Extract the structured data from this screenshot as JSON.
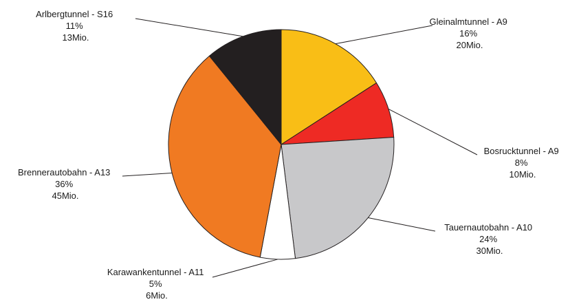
{
  "chart_data": {
    "type": "pie",
    "title": "",
    "unit": "Mio.",
    "start_angle_deg": 0,
    "direction": "clockwise",
    "slices": [
      {
        "name": "Gleinalmtunnel - A9",
        "percent": 16,
        "value": 20,
        "percent_label": "16%",
        "value_label": "20Mio.",
        "color": "#F9BE16"
      },
      {
        "name": "Bosrucktunnel - A9",
        "percent": 8,
        "value": 10,
        "percent_label": "8%",
        "value_label": "10Mio.",
        "color": "#EE2A24"
      },
      {
        "name": "Tauernautobahn - A10",
        "percent": 24,
        "value": 30,
        "percent_label": "24%",
        "value_label": "30Mio.",
        "color": "#C8C8CA"
      },
      {
        "name": "Karawankentunnel - A11",
        "percent": 5,
        "value": 6,
        "percent_label": "5%",
        "value_label": "6Mio.",
        "color": "#FFFFFF"
      },
      {
        "name": "Brennerautobahn - A13",
        "percent": 36,
        "value": 45,
        "percent_label": "36%",
        "value_label": "45Mio.",
        "color": "#F07A22"
      },
      {
        "name": "Arlbergtunnel - S16",
        "percent": 11,
        "value": 13,
        "percent_label": "11%",
        "value_label": "13Mio.",
        "color": "#231F20"
      }
    ]
  }
}
